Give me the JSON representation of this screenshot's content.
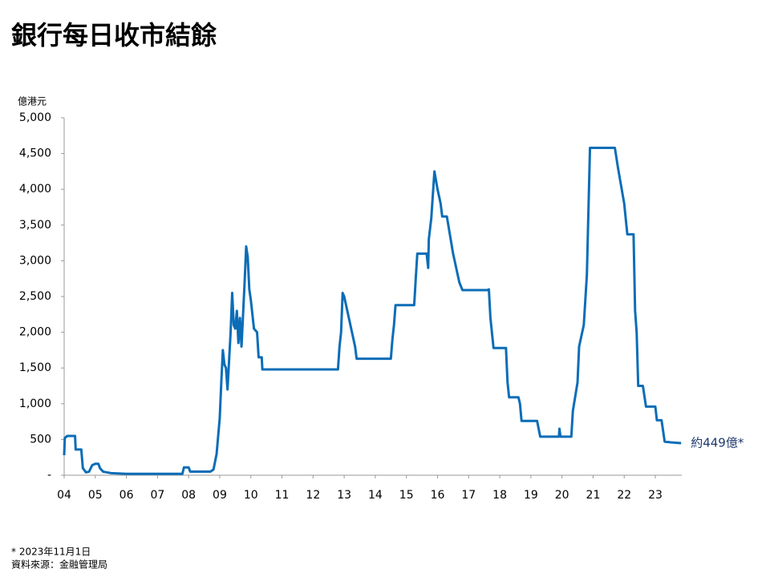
{
  "chart_data": {
    "type": "line",
    "title": "銀行每日收市結餘",
    "y_label": "億港元",
    "annotation": "約449億*",
    "footnote": "* 2023年11月1日",
    "source": "資料來源：金融管理局",
    "xlim": [
      2004,
      2023.85
    ],
    "ylim": [
      0,
      5000
    ],
    "xticks": [
      {
        "value": 2004,
        "label": "04"
      },
      {
        "value": 2005,
        "label": "05"
      },
      {
        "value": 2006,
        "label": "06"
      },
      {
        "value": 2007,
        "label": "07"
      },
      {
        "value": 2008,
        "label": "08"
      },
      {
        "value": 2009,
        "label": "09"
      },
      {
        "value": 2010,
        "label": "10"
      },
      {
        "value": 2011,
        "label": "11"
      },
      {
        "value": 2012,
        "label": "12"
      },
      {
        "value": 2013,
        "label": "13"
      },
      {
        "value": 2014,
        "label": "14"
      },
      {
        "value": 2015,
        "label": "15"
      },
      {
        "value": 2016,
        "label": "16"
      },
      {
        "value": 2017,
        "label": "17"
      },
      {
        "value": 2018,
        "label": "18"
      },
      {
        "value": 2019,
        "label": "19"
      },
      {
        "value": 2020,
        "label": "20"
      },
      {
        "value": 2021,
        "label": "21"
      },
      {
        "value": 2022,
        "label": "22"
      },
      {
        "value": 2023,
        "label": "23"
      }
    ],
    "yticks": [
      {
        "value": 0,
        "label": "-"
      },
      500,
      {
        "value": 1000,
        "label": "1,000"
      },
      {
        "value": 1500,
        "label": "1,500"
      },
      {
        "value": 2000,
        "label": "2,000"
      },
      {
        "value": 2500,
        "label": "2,500"
      },
      {
        "value": 3000,
        "label": "3,000"
      },
      {
        "value": 3500,
        "label": "3,500"
      },
      {
        "value": 4000,
        "label": "4,000"
      },
      {
        "value": 4500,
        "label": "4,500"
      },
      {
        "value": 5000,
        "label": "5,000"
      }
    ],
    "grid": false,
    "series": [
      {
        "color": "#0b6db7",
        "x": [
          2004.0,
          2004.02,
          2004.1,
          2004.35,
          2004.37,
          2004.55,
          2004.6,
          2004.7,
          2004.8,
          2004.9,
          2005.0,
          2005.1,
          2005.15,
          2005.25,
          2005.5,
          2006.0,
          2007.0,
          2007.8,
          2007.85,
          2008.0,
          2008.05,
          2008.7,
          2008.8,
          2008.9,
          2009.0,
          2009.05,
          2009.1,
          2009.15,
          2009.2,
          2009.25,
          2009.3,
          2009.35,
          2009.4,
          2009.45,
          2009.5,
          2009.55,
          2009.6,
          2009.65,
          2009.7,
          2009.8,
          2009.85,
          2009.9,
          2009.95,
          2010.0,
          2010.1,
          2010.2,
          2010.25,
          2010.35,
          2010.37,
          2012.8,
          2012.85,
          2012.9,
          2012.95,
          2013.0,
          2013.1,
          2013.2,
          2013.35,
          2013.4,
          2014.5,
          2014.55,
          2014.6,
          2014.65,
          2015.25,
          2015.3,
          2015.35,
          2015.65,
          2015.7,
          2015.72,
          2015.8,
          2015.9,
          2016.0,
          2016.1,
          2016.15,
          2016.3,
          2016.5,
          2016.7,
          2016.8,
          2017.6,
          2017.65,
          2017.7,
          2017.8,
          2018.2,
          2018.25,
          2018.3,
          2018.6,
          2018.65,
          2018.7,
          2019.2,
          2019.3,
          2019.9,
          2019.92,
          2019.95,
          2020.3,
          2020.35,
          2020.5,
          2020.55,
          2020.7,
          2020.8,
          2020.85,
          2020.9,
          2021.0,
          2021.7,
          2021.8,
          2022.0,
          2022.1,
          2022.3,
          2022.35,
          2022.4,
          2022.45,
          2022.6,
          2022.7,
          2023.0,
          2023.05,
          2023.2,
          2023.3,
          2023.5,
          2023.83
        ],
        "values": [
          280,
          520,
          550,
          550,
          360,
          360,
          100,
          40,
          50,
          140,
          160,
          160,
          100,
          50,
          30,
          20,
          20,
          20,
          110,
          110,
          50,
          50,
          80,
          300,
          800,
          1300,
          1750,
          1550,
          1500,
          1200,
          1600,
          2000,
          2550,
          2100,
          2050,
          2300,
          1850,
          2200,
          1800,
          2700,
          3200,
          3050,
          2600,
          2450,
          2050,
          2000,
          1650,
          1650,
          1480,
          1480,
          1800,
          2000,
          2550,
          2500,
          2300,
          2100,
          1800,
          1630,
          1630,
          1900,
          2100,
          2380,
          2380,
          2750,
          3100,
          3100,
          2900,
          3300,
          3600,
          4250,
          4000,
          3800,
          3620,
          3620,
          3100,
          2700,
          2590,
          2590,
          2600,
          2200,
          1780,
          1780,
          1300,
          1090,
          1090,
          1000,
          760,
          760,
          540,
          540,
          650,
          540,
          540,
          900,
          1300,
          1800,
          2100,
          2800,
          3700,
          4580,
          4580,
          4580,
          4300,
          3800,
          3370,
          3370,
          2300,
          2000,
          1250,
          1250,
          960,
          960,
          770,
          770,
          470,
          460,
          449
        ]
      }
    ]
  }
}
